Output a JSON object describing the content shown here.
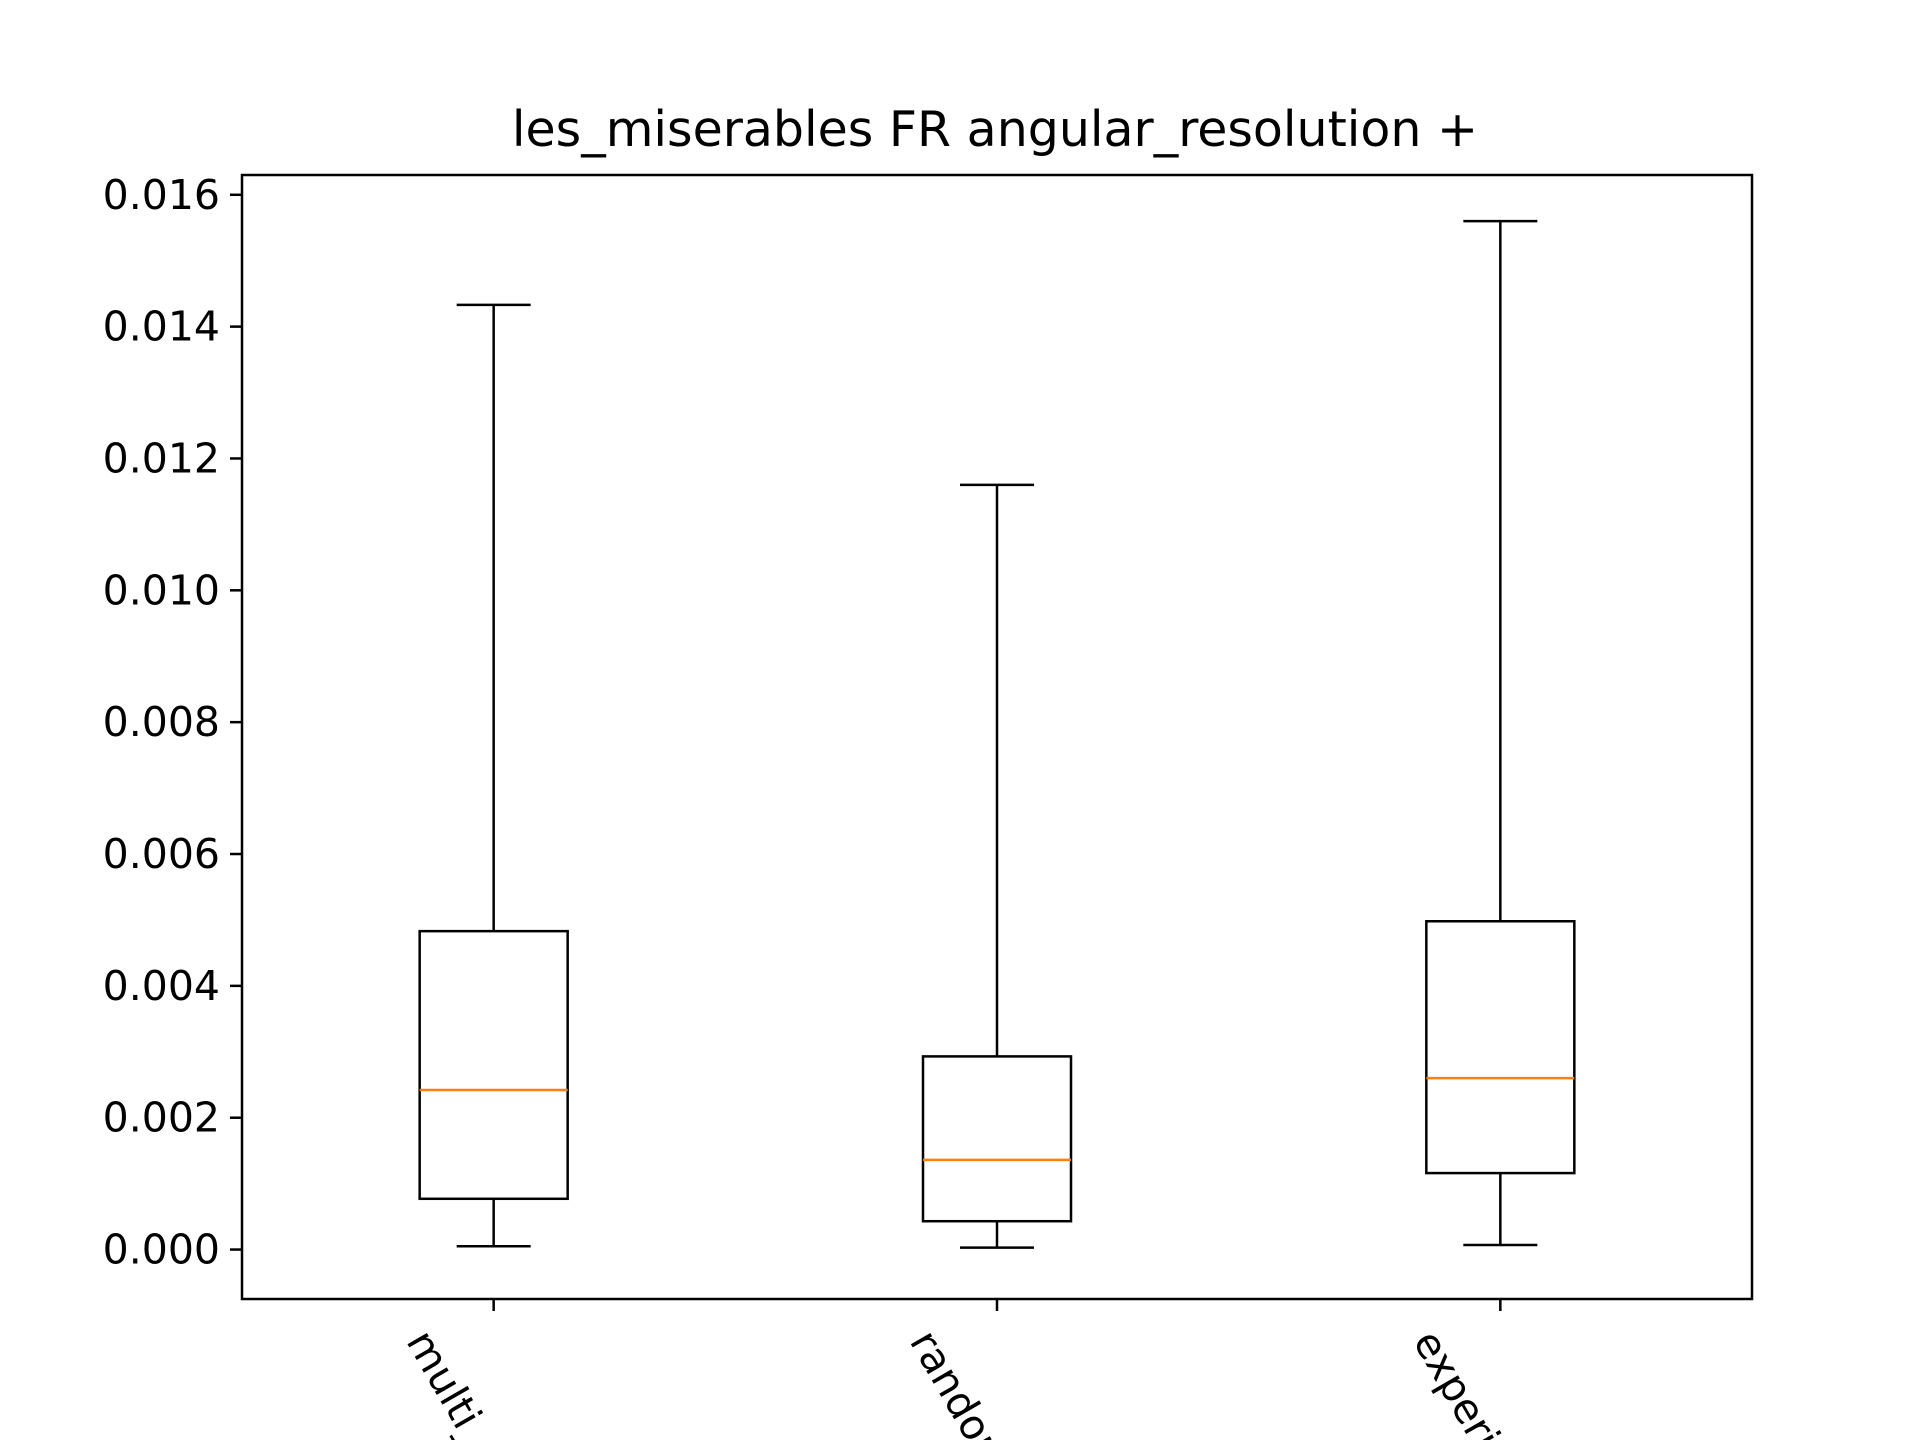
{
  "chart_data": {
    "type": "box",
    "title": "les_miserables FR angular_resolution +",
    "xlabel": "",
    "ylabel": "",
    "ylim": [
      -0.00075,
      0.0163
    ],
    "yticks": [
      {
        "value": 0.0,
        "label": "0.000"
      },
      {
        "value": 0.002,
        "label": "0.002"
      },
      {
        "value": 0.004,
        "label": "0.004"
      },
      {
        "value": 0.006,
        "label": "0.006"
      },
      {
        "value": 0.008,
        "label": "0.008"
      },
      {
        "value": 0.01,
        "label": "0.010"
      },
      {
        "value": 0.012,
        "label": "0.012"
      },
      {
        "value": 0.014,
        "label": "0.014"
      },
      {
        "value": 0.016,
        "label": "0.016"
      }
    ],
    "categories": [
      "multi_o",
      "random",
      "experie"
    ],
    "boxes": [
      {
        "category": "multi_o",
        "whisker_low": 5e-05,
        "q1": 0.00077,
        "median": 0.00242,
        "q3": 0.00483,
        "whisker_high": 0.01433
      },
      {
        "category": "random",
        "whisker_low": 3e-05,
        "q1": 0.00043,
        "median": 0.00136,
        "q3": 0.00293,
        "whisker_high": 0.0116
      },
      {
        "category": "experie",
        "whisker_low": 7e-05,
        "q1": 0.00116,
        "median": 0.0026,
        "q3": 0.00498,
        "whisker_high": 0.0156
      }
    ],
    "colors": {
      "box": "#000000",
      "median": "#ff7f0e",
      "background": "#ffffff"
    },
    "grid": false,
    "legend": "none"
  }
}
